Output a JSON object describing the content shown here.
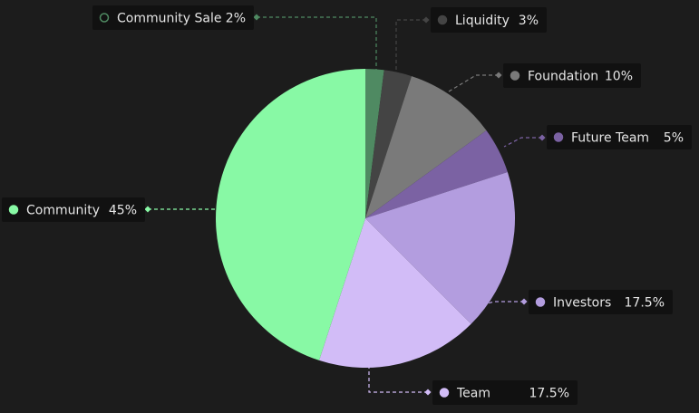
{
  "chart_data": {
    "type": "pie",
    "categories": [
      "Community Sale",
      "Liquidity",
      "Foundation",
      "Future Team",
      "Investors",
      "Team",
      "Community"
    ],
    "values": [
      2,
      3,
      10,
      5,
      17.5,
      17.5,
      45
    ],
    "value_labels": [
      "2%",
      "3%",
      "10%",
      "5%",
      "17.5%",
      "17.5%",
      "45%"
    ],
    "colors": [
      "#4f8a62",
      "#444444",
      "#7a7a7a",
      "#7b62a3",
      "#b39ddf",
      "#d2bcf7",
      "#88f9a5"
    ]
  }
}
